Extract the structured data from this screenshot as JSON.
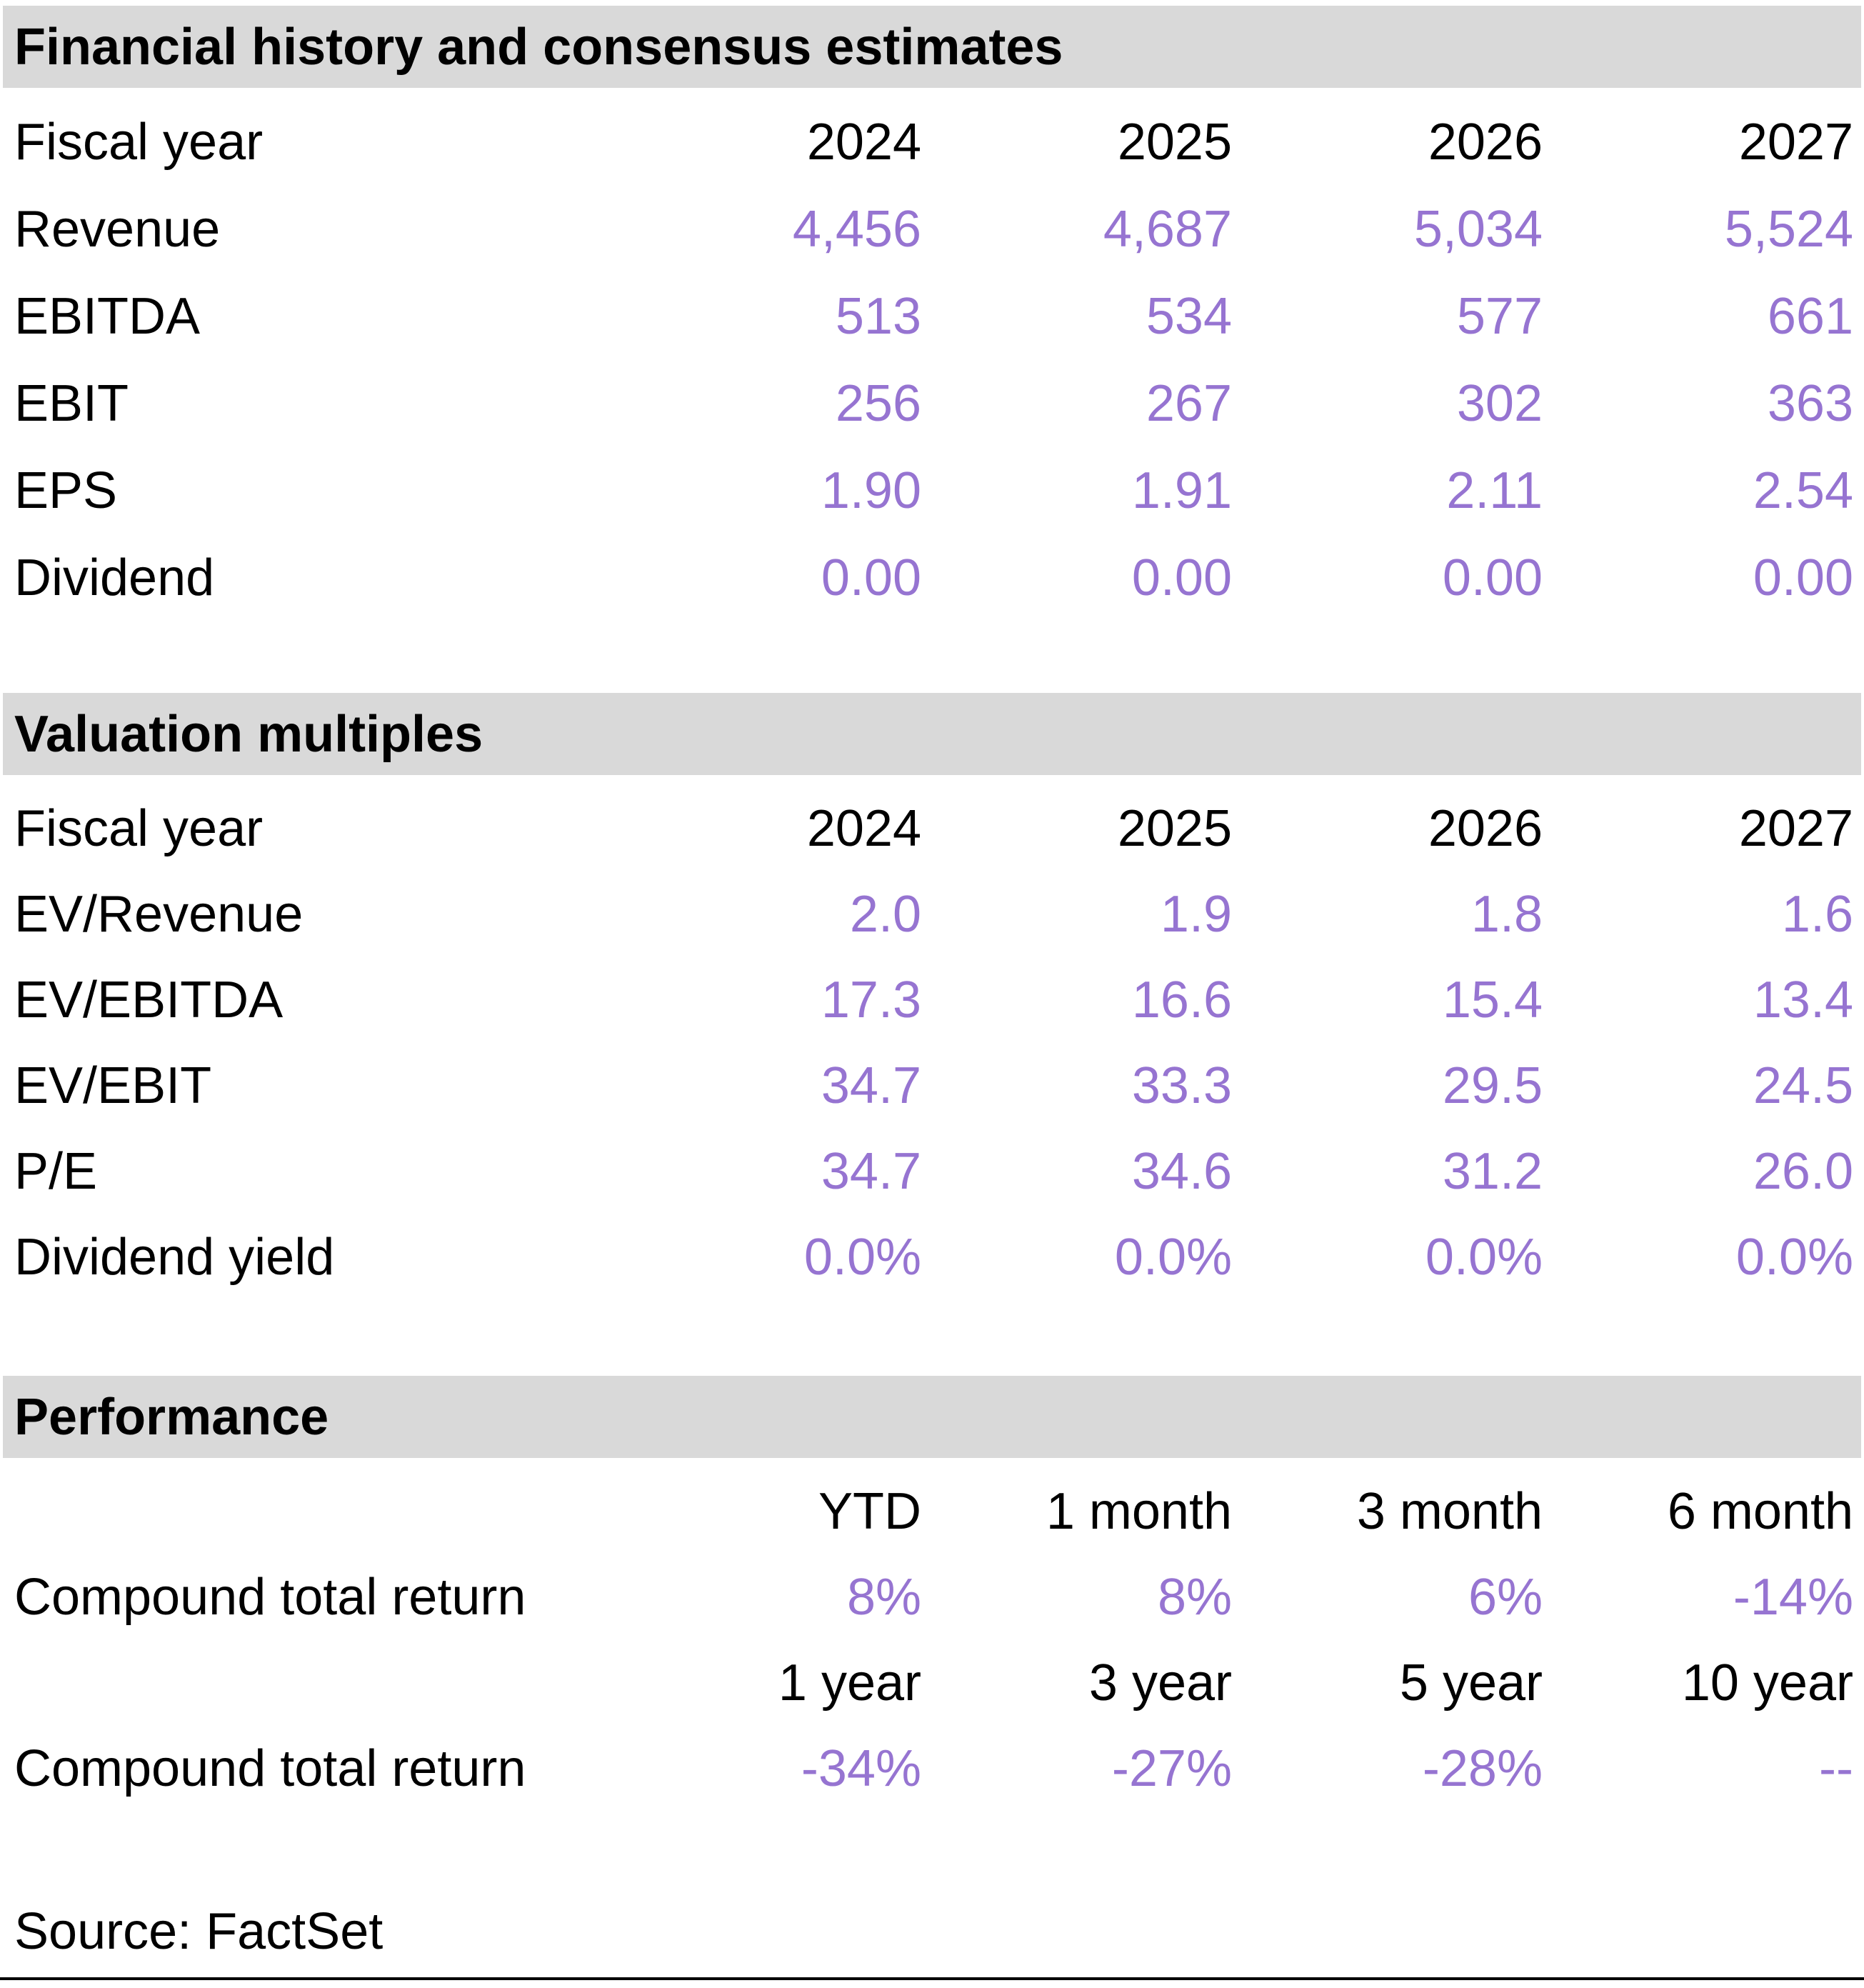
{
  "colors": {
    "accent_purple": "#9674D1",
    "section_header_bg": "#D9D9D9",
    "text": "#000000"
  },
  "sections": [
    {
      "title": "Financial history and consensus estimates",
      "header_row": {
        "label": "Fiscal year",
        "values": [
          "2024",
          "2025",
          "2026",
          "2027"
        ]
      },
      "rows": [
        {
          "label": "Revenue",
          "values": [
            "4,456",
            "4,687",
            "5,034",
            "5,524"
          ]
        },
        {
          "label": "EBITDA",
          "values": [
            "513",
            "534",
            "577",
            "661"
          ]
        },
        {
          "label": "EBIT",
          "values": [
            "256",
            "267",
            "302",
            "363"
          ]
        },
        {
          "label": "EPS",
          "values": [
            "1.90",
            "1.91",
            "2.11",
            "2.54"
          ]
        },
        {
          "label": "Dividend",
          "values": [
            "0.00",
            "0.00",
            "0.00",
            "0.00"
          ]
        }
      ]
    },
    {
      "title": "Valuation multiples",
      "header_row": {
        "label": "Fiscal year",
        "values": [
          "2024",
          "2025",
          "2026",
          "2027"
        ]
      },
      "rows": [
        {
          "label": "EV/Revenue",
          "values": [
            "2.0",
            "1.9",
            "1.8",
            "1.6"
          ]
        },
        {
          "label": "EV/EBITDA",
          "values": [
            "17.3",
            "16.6",
            "15.4",
            "13.4"
          ]
        },
        {
          "label": "EV/EBIT",
          "values": [
            "34.7",
            "33.3",
            "29.5",
            "24.5"
          ]
        },
        {
          "label": "P/E",
          "values": [
            "34.7",
            "34.6",
            "31.2",
            "26.0"
          ]
        },
        {
          "label": "Dividend yield",
          "values": [
            "0.0%",
            "0.0%",
            "0.0%",
            "0.0%"
          ]
        }
      ]
    },
    {
      "title": "Performance",
      "blocks": [
        {
          "header_row": {
            "label": "",
            "values": [
              "YTD",
              "1 month",
              "3 month",
              "6 month"
            ]
          },
          "row": {
            "label": "Compound total return",
            "values": [
              "8%",
              "8%",
              "6%",
              "-14%"
            ]
          }
        },
        {
          "header_row": {
            "label": "",
            "values": [
              "1 year",
              "3 year",
              "5 year",
              "10 year"
            ]
          },
          "row": {
            "label": "Compound total return",
            "values": [
              "-34%",
              "-27%",
              "-28%",
              "--"
            ]
          }
        }
      ]
    }
  ],
  "source": "Source: FactSet"
}
